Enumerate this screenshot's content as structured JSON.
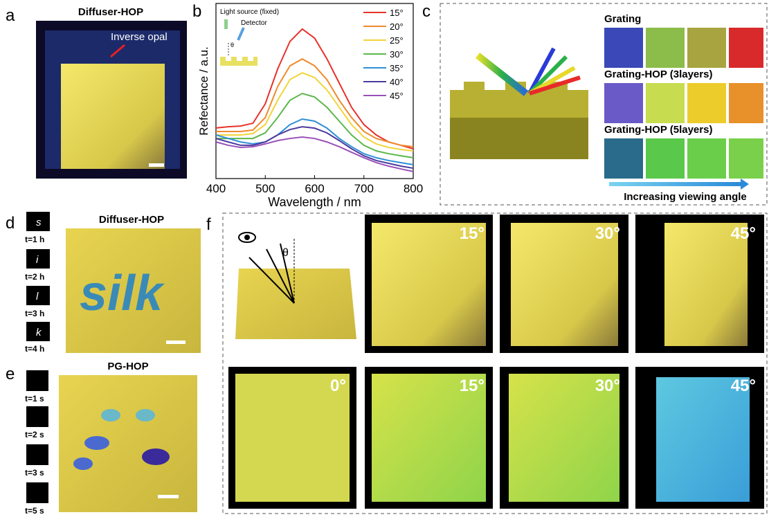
{
  "panels": {
    "a": {
      "label": "a",
      "title": "Diffuser-HOP",
      "annotation": "Inverse opal"
    },
    "b": {
      "label": "b"
    },
    "c": {
      "label": "c",
      "rows": [
        "Grating",
        "Grating-HOP  (3layers)",
        "Grating-HOP (5layers)"
      ],
      "arrow_label": "Increasing viewing angle"
    },
    "d": {
      "label": "d",
      "title": "Diffuser-HOP",
      "word": "silk",
      "letters": [
        "s",
        "i",
        "l",
        "k"
      ],
      "times": [
        "t=1 h",
        "t=2 h",
        "t=3 h",
        "t=4 h"
      ]
    },
    "e": {
      "label": "e",
      "title": "PG-HOP",
      "times": [
        "t=1 s",
        "t=2 s",
        "t=3 s",
        "t=5 s"
      ]
    },
    "f": {
      "label": "f",
      "theta": "θ",
      "top_angles": [
        "15°",
        "30°",
        "45°"
      ],
      "bottom_angles": [
        "0°",
        "15°",
        "30°",
        "45°"
      ]
    }
  },
  "chart_data": {
    "type": "line",
    "xlabel": "Wavelength / nm",
    "ylabel": "Refectance / a.u.",
    "inset": {
      "source": "Light source (fixed)",
      "detector": "Detector",
      "theta": "θ"
    },
    "x": [
      400,
      425,
      450,
      475,
      500,
      525,
      550,
      575,
      600,
      625,
      650,
      675,
      700,
      725,
      750,
      775,
      800
    ],
    "xlim": [
      400,
      800
    ],
    "xticks": [
      400,
      500,
      600,
      700,
      800
    ],
    "ylim": [
      0,
      100
    ],
    "series": [
      {
        "name": "15°",
        "color": "#e8312a",
        "values": [
          28.9,
          29.6,
          30.0,
          31.6,
          42.7,
          62.5,
          78.3,
          85.4,
          80.2,
          68.4,
          54.5,
          40.7,
          30.8,
          24.9,
          20.9,
          19.0,
          17.0
        ]
      },
      {
        "name": "20°",
        "color": "#f08a2c",
        "values": [
          26.9,
          26.9,
          26.9,
          27.7,
          34.8,
          52.5,
          64.4,
          68.3,
          64.4,
          56.5,
          44.7,
          34.8,
          26.9,
          22.9,
          20.9,
          19.0,
          18.2
        ]
      },
      {
        "name": "25°",
        "color": "#f2d43a",
        "values": [
          24.9,
          24.9,
          24.9,
          25.7,
          30.8,
          44.7,
          56.5,
          60.4,
          57.7,
          50.6,
          40.7,
          30.8,
          23.7,
          19.8,
          17.8,
          16.6,
          15.8
        ]
      },
      {
        "name": "30°",
        "color": "#5bb749",
        "values": [
          22.9,
          22.9,
          22.9,
          22.9,
          26.1,
          34.8,
          44.7,
          48.6,
          46.6,
          40.7,
          32.8,
          24.9,
          19.0,
          15.8,
          14.2,
          13.0,
          11.9
        ]
      },
      {
        "name": "35°",
        "color": "#2f8fd6",
        "values": [
          24.9,
          22.9,
          20.9,
          19.8,
          20.9,
          24.9,
          30.8,
          34.0,
          32.8,
          28.8,
          22.9,
          18.2,
          14.2,
          11.9,
          10.3,
          9.1,
          7.9
        ]
      },
      {
        "name": "40°",
        "color": "#4b3a9e",
        "values": [
          22.9,
          20.9,
          19.0,
          19.0,
          20.9,
          24.9,
          28.0,
          29.6,
          28.8,
          26.1,
          21.7,
          17.0,
          13.0,
          10.3,
          8.7,
          7.1,
          5.9
        ]
      },
      {
        "name": "45°",
        "color": "#9a4fb8",
        "values": [
          20.9,
          19.0,
          17.8,
          18.2,
          19.8,
          21.7,
          22.9,
          23.7,
          22.9,
          20.9,
          18.2,
          15.0,
          11.9,
          9.1,
          7.1,
          5.5,
          4.0
        ]
      }
    ]
  }
}
